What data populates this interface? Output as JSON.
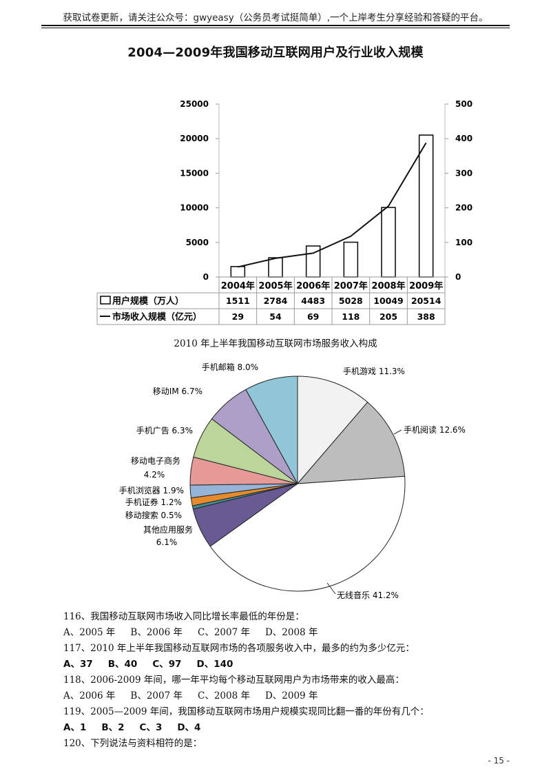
{
  "header": {
    "note": "获取试卷更新，请关注公众号：gwyeasy（公务员考试挺简单）,一个上岸考生分享经验和答疑的平台。"
  },
  "chart_data": [
    {
      "type": "bar",
      "title": "2004—2009年我国移动互联网用户及行业收入规模",
      "categories": [
        "2004年",
        "2005年",
        "2006年",
        "2007年",
        "2008年",
        "2009年"
      ],
      "y_left_ticks": [
        "25000",
        "20000",
        "15000",
        "10000",
        "5000",
        "0"
      ],
      "y_right_ticks": [
        "500",
        "400",
        "300",
        "200",
        "100",
        "0"
      ],
      "ylim_left": [
        0,
        25000
      ],
      "ylim_right": [
        0,
        500
      ],
      "series": [
        {
          "name": "用户规模（万人）",
          "kind": "bar",
          "axis": "left",
          "values": [
            1511,
            2784,
            4483,
            5028,
            10049,
            20514
          ],
          "labels": [
            "1511",
            "2784",
            "4483",
            "5028",
            "10049",
            "20514"
          ]
        },
        {
          "name": "市场收入规模（亿元）",
          "kind": "line",
          "axis": "right",
          "values": [
            29,
            54,
            69,
            118,
            205,
            388
          ],
          "labels": [
            "29",
            "54",
            "69",
            "118",
            "205",
            "388"
          ]
        }
      ],
      "legend_placement": "bottom data table",
      "grid": false
    },
    {
      "type": "pie",
      "title": "2010 年上半年我国移动互联网市场服务收入构成",
      "slices": [
        {
          "label": "手机游戏",
          "value": 11.3,
          "text": "手机游戏 11.3%",
          "color": "#f2f2f2"
        },
        {
          "label": "手机阅读",
          "value": 12.6,
          "text": "手机阅读 12.6%",
          "color": "#bdbdbd"
        },
        {
          "label": "无线音乐",
          "value": 41.2,
          "text": "无线音乐 41.2%",
          "color": "#ffffff"
        },
        {
          "label": "其他应用服务",
          "value": 6.1,
          "text1": "其他应用服务",
          "text2": "6.1%",
          "color": "#6a5a93"
        },
        {
          "label": "移动搜索",
          "value": 0.5,
          "text": "移动搜索 0.5%",
          "color": "#3f8f94"
        },
        {
          "label": "手机证券",
          "value": 1.2,
          "text": "手机证券 1.2%",
          "color": "#e68a2e"
        },
        {
          "label": "手机浏览器",
          "value": 1.9,
          "text": "手机浏览器 1.9%",
          "color": "#96b4d8"
        },
        {
          "label": "移动电子商务",
          "value": 4.2,
          "text1": "移动电子商务",
          "text2": "4.2%",
          "color": "#e59a98"
        },
        {
          "label": "手机广告",
          "value": 6.3,
          "text": "手机广告 6.3%",
          "color": "#bcd59a"
        },
        {
          "label": "移动IM",
          "value": 6.7,
          "text": "移动IM 6.7%",
          "color": "#ad9fc7"
        },
        {
          "label": "手机邮箱",
          "value": 8.0,
          "text": "手机邮箱 8.0%",
          "color": "#90c6d8"
        }
      ]
    }
  ],
  "questions": [
    {
      "stem": "116、我国移动互联网市场收入同比增长率最低的年份是：",
      "options": [
        "A、2005 年",
        "B、2006 年",
        "C、2007 年",
        "D、2008 年"
      ]
    },
    {
      "stem": "117、2010 年上半年我国移动互联网市场的各项服务收入中，最多的约为多少亿元：",
      "options": [
        "A、37",
        "B、40",
        "C、97",
        "D、140"
      ]
    },
    {
      "stem": "118、2006-2009 年间，哪一年平均每个移动互联网用户为市场带来的收入最高：",
      "options": [
        "A、2006 年",
        "B、2007 年",
        "C、2008 年",
        "D、2009 年"
      ]
    },
    {
      "stem": "119、2005—2009 年间，我国移动互联网市场用户规模实现同比翻一番的年份有几个：",
      "options": [
        "A、1",
        "B、2",
        "C、3",
        "D、4"
      ]
    },
    {
      "stem": "120、下列说法与资料相符的是：",
      "options": []
    }
  ],
  "footer": {
    "page": "- 15 -"
  }
}
